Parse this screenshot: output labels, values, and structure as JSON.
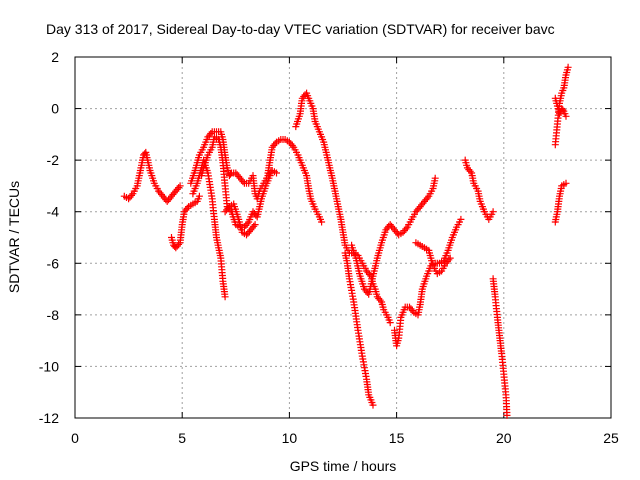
{
  "chart_data": {
    "type": "scatter",
    "title": "Day 313 of 2017, Sidereal Day-to-day VTEC variation (SDTVAR) for receiver bavc",
    "xlabel": "GPS time / hours",
    "ylabel": "SDTVAR / TECUs",
    "xlim": [
      0,
      25
    ],
    "ylim": [
      -12,
      2
    ],
    "xticks": [
      0,
      5,
      10,
      15,
      20,
      25
    ],
    "yticks": [
      -12,
      -10,
      -8,
      -6,
      -4,
      -2,
      0,
      2
    ],
    "grid": true,
    "marker": "+",
    "color": "#ff0000",
    "series": [
      {
        "segments": [
          [
            [
              2.3,
              -3.4
            ],
            [
              2.5,
              -3.5
            ],
            [
              2.7,
              -3.3
            ],
            [
              2.9,
              -3.0
            ],
            [
              3.1,
              -2.2
            ],
            [
              3.2,
              -1.8
            ],
            [
              3.3,
              -1.7
            ],
            [
              3.5,
              -2.4
            ],
            [
              3.7,
              -2.9
            ],
            [
              3.9,
              -3.2
            ],
            [
              4.1,
              -3.4
            ],
            [
              4.3,
              -3.6
            ],
            [
              4.5,
              -3.4
            ],
            [
              4.7,
              -3.2
            ],
            [
              4.9,
              -3.0
            ]
          ],
          [
            [
              4.5,
              -5.0
            ],
            [
              4.6,
              -5.3
            ],
            [
              4.7,
              -5.4
            ],
            [
              4.9,
              -5.2
            ],
            [
              5.0,
              -4.5
            ],
            [
              5.1,
              -4.0
            ],
            [
              5.3,
              -3.8
            ],
            [
              5.5,
              -3.7
            ],
            [
              5.7,
              -3.6
            ],
            [
              5.8,
              -3.4
            ]
          ],
          [
            [
              5.4,
              -2.9
            ],
            [
              5.6,
              -2.4
            ],
            [
              5.8,
              -1.8
            ],
            [
              6.0,
              -1.5
            ],
            [
              6.2,
              -1.1
            ],
            [
              6.4,
              -0.9
            ],
            [
              6.6,
              -0.9
            ],
            [
              6.8,
              -0.9
            ],
            [
              6.9,
              -1.2
            ],
            [
              7.0,
              -1.8
            ],
            [
              7.1,
              -2.3
            ],
            [
              7.2,
              -2.6
            ],
            [
              7.3,
              -2.5
            ],
            [
              7.5,
              -2.5
            ],
            [
              7.7,
              -2.7
            ],
            [
              7.9,
              -2.9
            ],
            [
              8.1,
              -2.9
            ],
            [
              8.3,
              -2.6
            ],
            [
              8.4,
              -3.3
            ],
            [
              8.5,
              -3.5
            ],
            [
              8.6,
              -3.2
            ],
            [
              8.8,
              -2.9
            ],
            [
              9.0,
              -2.6
            ],
            [
              9.2,
              -2.4
            ],
            [
              9.4,
              -2.5
            ]
          ],
          [
            [
              5.5,
              -3.3
            ],
            [
              5.7,
              -2.9
            ],
            [
              5.9,
              -2.3
            ],
            [
              6.0,
              -2.0
            ],
            [
              6.2,
              -2.5
            ],
            [
              6.4,
              -3.5
            ],
            [
              6.5,
              -4.3
            ],
            [
              6.6,
              -5.0
            ],
            [
              6.8,
              -5.8
            ],
            [
              6.9,
              -6.7
            ],
            [
              7.0,
              -7.3
            ]
          ],
          [
            [
              5.9,
              -2.6
            ],
            [
              6.0,
              -2.3
            ],
            [
              6.2,
              -1.8
            ],
            [
              6.4,
              -1.5
            ],
            [
              6.5,
              -1.1
            ],
            [
              6.7,
              -1.2
            ],
            [
              6.8,
              -1.5
            ],
            [
              6.9,
              -2.1
            ],
            [
              7.0,
              -3.0
            ],
            [
              7.1,
              -3.8
            ],
            [
              7.3,
              -4.0
            ],
            [
              7.5,
              -4.5
            ],
            [
              7.7,
              -4.6
            ],
            [
              7.9,
              -4.6
            ],
            [
              8.1,
              -4.4
            ],
            [
              8.3,
              -4.0
            ],
            [
              8.5,
              -4.2
            ],
            [
              8.7,
              -3.5
            ],
            [
              8.9,
              -3.0
            ],
            [
              9.1,
              -2.6
            ]
          ],
          [
            [
              7.0,
              -4.0
            ],
            [
              7.2,
              -3.8
            ],
            [
              7.4,
              -3.7
            ],
            [
              7.6,
              -4.2
            ],
            [
              7.8,
              -4.8
            ],
            [
              8.0,
              -4.9
            ],
            [
              8.2,
              -4.7
            ],
            [
              8.4,
              -4.5
            ]
          ],
          [
            [
              9.0,
              -2.5
            ],
            [
              9.1,
              -2.0
            ],
            [
              9.2,
              -1.5
            ],
            [
              9.4,
              -1.3
            ],
            [
              9.6,
              -1.2
            ],
            [
              9.8,
              -1.2
            ],
            [
              10.0,
              -1.3
            ],
            [
              10.2,
              -1.5
            ],
            [
              10.4,
              -1.8
            ],
            [
              10.6,
              -2.2
            ],
            [
              10.8,
              -2.6
            ],
            [
              10.9,
              -3.1
            ],
            [
              11.0,
              -3.5
            ],
            [
              11.2,
              -3.9
            ],
            [
              11.4,
              -4.2
            ],
            [
              11.5,
              -4.4
            ]
          ],
          [
            [
              10.3,
              -0.7
            ],
            [
              10.5,
              -0.2
            ],
            [
              10.6,
              0.4
            ],
            [
              10.8,
              0.6
            ],
            [
              10.9,
              0.4
            ],
            [
              11.1,
              0.0
            ],
            [
              11.2,
              -0.5
            ],
            [
              11.4,
              -0.9
            ],
            [
              11.6,
              -1.3
            ],
            [
              11.8,
              -2.0
            ],
            [
              12.0,
              -2.7
            ],
            [
              12.2,
              -3.5
            ],
            [
              12.4,
              -4.3
            ],
            [
              12.5,
              -4.8
            ],
            [
              12.6,
              -5.3
            ],
            [
              12.8,
              -5.6
            ],
            [
              13.0,
              -5.6
            ],
            [
              13.2,
              -5.7
            ],
            [
              13.4,
              -6.0
            ],
            [
              13.6,
              -6.3
            ],
            [
              13.8,
              -6.5
            ],
            [
              13.9,
              -6.8
            ],
            [
              14.0,
              -7.0
            ],
            [
              14.1,
              -7.3
            ],
            [
              14.3,
              -7.5
            ],
            [
              14.4,
              -7.8
            ],
            [
              14.6,
              -8.1
            ],
            [
              14.7,
              -8.3
            ]
          ],
          [
            [
              12.6,
              -5.6
            ],
            [
              12.7,
              -6.0
            ],
            [
              12.8,
              -6.6
            ],
            [
              13.0,
              -7.5
            ],
            [
              13.2,
              -8.6
            ],
            [
              13.4,
              -9.6
            ],
            [
              13.6,
              -10.5
            ],
            [
              13.7,
              -11.1
            ],
            [
              13.9,
              -11.5
            ]
          ],
          [
            [
              12.9,
              -5.3
            ],
            [
              13.1,
              -5.8
            ],
            [
              13.3,
              -6.5
            ],
            [
              13.5,
              -7.0
            ],
            [
              13.7,
              -7.2
            ],
            [
              13.9,
              -6.5
            ],
            [
              14.1,
              -5.8
            ],
            [
              14.3,
              -5.2
            ],
            [
              14.5,
              -4.7
            ],
            [
              14.7,
              -4.5
            ],
            [
              14.9,
              -4.7
            ],
            [
              15.1,
              -4.9
            ],
            [
              15.3,
              -4.8
            ],
            [
              15.5,
              -4.6
            ],
            [
              15.7,
              -4.3
            ],
            [
              15.9,
              -4.0
            ],
            [
              16.1,
              -3.8
            ],
            [
              16.3,
              -3.6
            ],
            [
              16.5,
              -3.4
            ],
            [
              16.7,
              -3.1
            ],
            [
              16.8,
              -2.7
            ]
          ],
          [
            [
              14.9,
              -8.6
            ],
            [
              15.0,
              -9.2
            ],
            [
              15.1,
              -8.9
            ],
            [
              15.2,
              -8.1
            ],
            [
              15.4,
              -7.7
            ],
            [
              15.6,
              -7.7
            ],
            [
              15.8,
              -7.9
            ],
            [
              16.0,
              -8.0
            ],
            [
              16.1,
              -7.6
            ],
            [
              16.2,
              -7.0
            ],
            [
              16.4,
              -6.5
            ],
            [
              16.6,
              -6.1
            ],
            [
              16.8,
              -6.0
            ],
            [
              17.0,
              -6.0
            ],
            [
              17.2,
              -5.9
            ],
            [
              17.4,
              -5.5
            ],
            [
              17.6,
              -5.0
            ],
            [
              17.8,
              -4.6
            ],
            [
              18.0,
              -4.3
            ]
          ],
          [
            [
              15.9,
              -5.2
            ],
            [
              16.1,
              -5.3
            ],
            [
              16.3,
              -5.4
            ],
            [
              16.5,
              -5.5
            ],
            [
              16.7,
              -6.1
            ],
            [
              16.9,
              -6.4
            ],
            [
              17.1,
              -6.3
            ],
            [
              17.3,
              -6.0
            ],
            [
              17.5,
              -5.8
            ]
          ],
          [
            [
              18.2,
              -2.0
            ],
            [
              18.3,
              -2.3
            ],
            [
              18.5,
              -2.5
            ],
            [
              18.6,
              -2.9
            ],
            [
              18.8,
              -3.2
            ],
            [
              18.9,
              -3.6
            ],
            [
              19.1,
              -4.0
            ],
            [
              19.3,
              -4.3
            ],
            [
              19.5,
              -4.0
            ]
          ],
          [
            [
              19.5,
              -6.6
            ],
            [
              19.6,
              -7.3
            ],
            [
              19.7,
              -8.1
            ],
            [
              19.8,
              -8.8
            ],
            [
              19.9,
              -9.5
            ],
            [
              20.0,
              -10.3
            ],
            [
              20.1,
              -11.1
            ],
            [
              20.15,
              -11.9
            ]
          ],
          [
            [
              22.4,
              -4.4
            ],
            [
              22.5,
              -4.0
            ],
            [
              22.6,
              -3.4
            ],
            [
              22.7,
              -3.0
            ],
            [
              22.9,
              -2.9
            ]
          ],
          [
            [
              22.4,
              -1.4
            ],
            [
              22.5,
              -0.6
            ],
            [
              22.6,
              0.2
            ],
            [
              22.7,
              0.6
            ],
            [
              22.8,
              0.8
            ],
            [
              22.9,
              1.3
            ],
            [
              23.0,
              1.6
            ]
          ],
          [
            [
              22.4,
              0.4
            ],
            [
              22.5,
              0.1
            ],
            [
              22.6,
              -0.2
            ],
            [
              22.7,
              0.0
            ],
            [
              22.8,
              -0.1
            ],
            [
              22.9,
              -0.3
            ]
          ]
        ]
      }
    ]
  }
}
